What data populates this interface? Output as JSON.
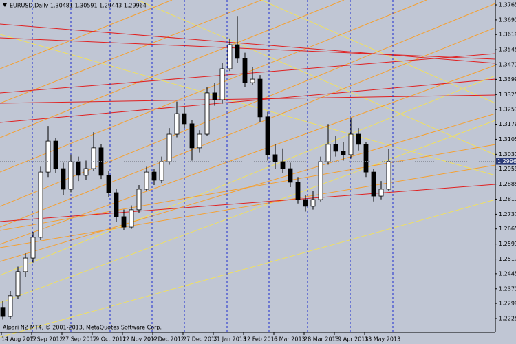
{
  "chart_data": {
    "type": "candlestick",
    "title": "EURUSD,Daily  1.30481 1.30591 1.29443 1.29964",
    "annotation": "Alpari NZ MT4, © 2001-2013, MetaQuotes Software Corp.",
    "categories": [
      "14 Aug 2012",
      null,
      null,
      null,
      "5 Sep 2012",
      null,
      null,
      null,
      "27 Sep 2012",
      null,
      null,
      null,
      "19 Oct 2012",
      null,
      null,
      null,
      "12 Nov 2012",
      null,
      null,
      null,
      "4 Dec 2012",
      null,
      null,
      null,
      "27 Dec 2012",
      null,
      null,
      null,
      "21 Jan 2013",
      null,
      null,
      null,
      "12 Feb 2013",
      null,
      null,
      null,
      "6 Mar 2013",
      null,
      null,
      null,
      "28 Mar 2013",
      null,
      null,
      null,
      "19 Apr 2013",
      null,
      null,
      null,
      "13 May 2013",
      null,
      null,
      null
    ],
    "open": [
      1.228,
      1.2235,
      1.2337,
      1.2455,
      1.2522,
      1.2624,
      1.2944,
      1.3096,
      1.2961,
      1.286,
      1.2995,
      1.2928,
      1.2961,
      1.3063,
      1.2928,
      1.2843,
      1.2725,
      1.2674,
      1.2759,
      1.286,
      1.2944,
      1.2904,
      1.2995,
      1.313,
      1.3231,
      1.3181,
      1.3063,
      1.313,
      1.3333,
      1.3299,
      1.3451,
      1.3569,
      1.3502,
      1.3383,
      1.34,
      1.3215,
      1.3029,
      1.2995,
      1.2961,
      1.2894,
      1.2809,
      1.2776,
      1.2809,
      1.2995,
      1.308,
      1.3046,
      1.3029,
      1.313,
      1.308,
      1.2944,
      1.2826,
      1.286
    ],
    "high": [
      1.231,
      1.236,
      1.248,
      1.2545,
      1.265,
      1.297,
      1.317,
      1.311,
      1.299,
      1.303,
      1.302,
      1.3,
      1.314,
      1.308,
      1.295,
      1.286,
      1.276,
      1.278,
      1.288,
      1.297,
      1.296,
      1.302,
      1.316,
      1.329,
      1.3265,
      1.32,
      1.315,
      1.336,
      1.338,
      1.348,
      1.36,
      1.371,
      1.353,
      1.346,
      1.342,
      1.324,
      1.308,
      1.306,
      1.299,
      1.292,
      1.283,
      1.285,
      1.302,
      1.318,
      1.312,
      1.309,
      1.321,
      1.316,
      1.309,
      1.296,
      1.29,
      1.3059
    ],
    "low": [
      1.222,
      1.2225,
      1.232,
      1.243,
      1.25,
      1.261,
      1.292,
      1.294,
      1.283,
      1.2845,
      1.29,
      1.2905,
      1.295,
      1.291,
      1.282,
      1.27,
      1.266,
      1.2665,
      1.2745,
      1.285,
      1.288,
      1.289,
      1.298,
      1.3115,
      1.316,
      1.3,
      1.304,
      1.312,
      1.327,
      1.328,
      1.344,
      1.348,
      1.336,
      1.337,
      1.319,
      1.3,
      1.296,
      1.294,
      1.287,
      1.279,
      1.275,
      1.276,
      1.28,
      1.298,
      1.302,
      1.3,
      1.301,
      1.305,
      1.292,
      1.28,
      1.281,
      1.285
    ],
    "close": [
      1.2235,
      1.2337,
      1.2455,
      1.2522,
      1.2624,
      1.2944,
      1.3096,
      1.2961,
      1.286,
      1.2995,
      1.2928,
      1.2961,
      1.3063,
      1.2928,
      1.2843,
      1.2725,
      1.2674,
      1.2759,
      1.286,
      1.2944,
      1.2904,
      1.2995,
      1.313,
      1.3231,
      1.3181,
      1.3063,
      1.313,
      1.3333,
      1.3299,
      1.3451,
      1.3569,
      1.3502,
      1.3383,
      1.34,
      1.3215,
      1.3029,
      1.2995,
      1.2961,
      1.2894,
      1.2809,
      1.2776,
      1.2809,
      1.2995,
      1.308,
      1.3046,
      1.3029,
      1.313,
      1.308,
      1.2944,
      1.2826,
      1.286,
      1.2996
    ],
    "last_price": 1.29964,
    "ylim": [
      1.2225,
      1.3765
    ],
    "yticks": [
      {
        "value": 1.3765,
        "label": "1.37650"
      },
      {
        "value": 1.3691,
        "label": "1.36910"
      },
      {
        "value": 1.3619,
        "label": "1.36190"
      },
      {
        "value": 1.3545,
        "label": "1.35450"
      },
      {
        "value": 1.3471,
        "label": "1.34710"
      },
      {
        "value": 1.3399,
        "label": "1.33990"
      },
      {
        "value": 1.3325,
        "label": "1.33250"
      },
      {
        "value": 1.3251,
        "label": "1.32510"
      },
      {
        "value": 1.3179,
        "label": "1.31790"
      },
      {
        "value": 1.3105,
        "label": "1.31050"
      },
      {
        "value": 1.3031,
        "label": "1.30310"
      },
      {
        "value": 1.2959,
        "label": "1.29590"
      },
      {
        "value": 1.2885,
        "label": "1.28850"
      },
      {
        "value": 1.2811,
        "label": "1.28110"
      },
      {
        "value": 1.2737,
        "label": "1.27370"
      },
      {
        "value": 1.2665,
        "label": "1.26650"
      },
      {
        "value": 1.2591,
        "label": "1.25910"
      },
      {
        "value": 1.2517,
        "label": "1.25170"
      },
      {
        "value": 1.2445,
        "label": "1.24450"
      },
      {
        "value": 1.2371,
        "label": "1.23710"
      },
      {
        "value": 1.2299,
        "label": "1.22990"
      },
      {
        "value": 1.2225,
        "label": "1.22250"
      }
    ],
    "colors": {
      "bull": "#ffffff",
      "bear": "#000000",
      "wick": "#000000"
    }
  }
}
